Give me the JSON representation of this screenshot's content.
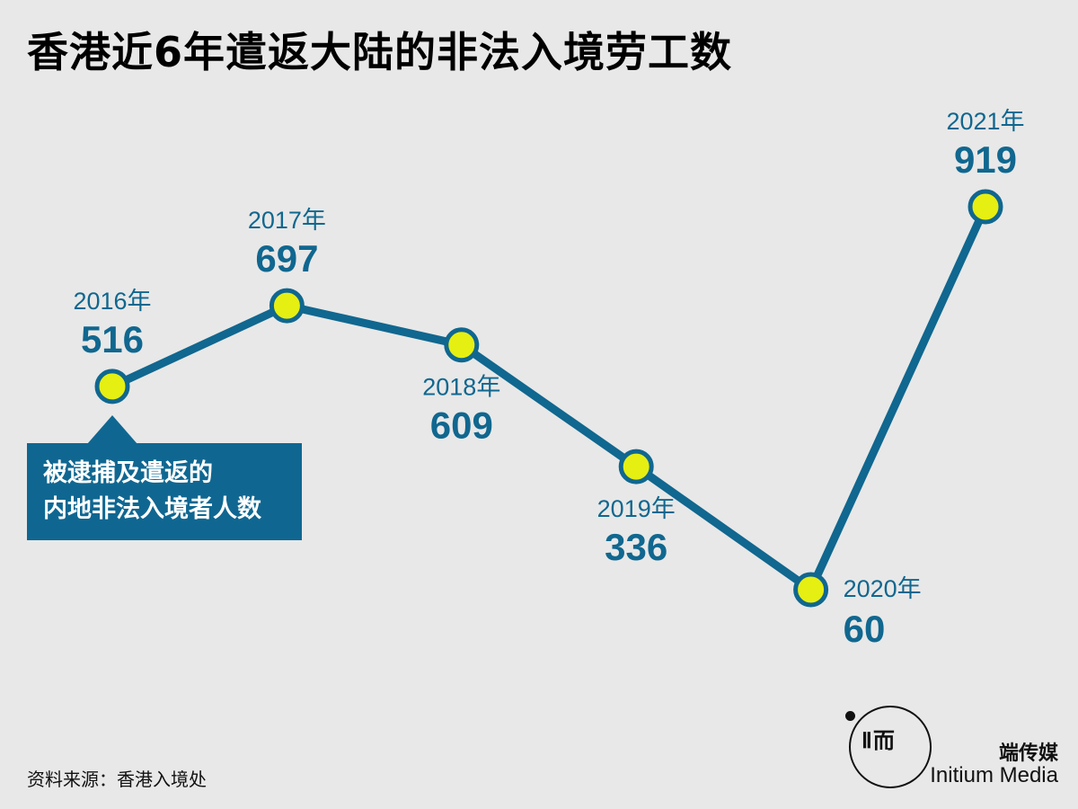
{
  "title": "香港近6年遣返大陆的非法入境劳工数",
  "chart_data": {
    "type": "line",
    "x": [
      "2016年",
      "2017年",
      "2018年",
      "2019年",
      "2020年",
      "2021年"
    ],
    "values": [
      516,
      697,
      609,
      336,
      60,
      919
    ],
    "ylim": [
      0,
      1000
    ],
    "grid": false,
    "line_color": "#10678f",
    "marker_color": "#e6ef12"
  },
  "callout": {
    "line1": "被逮捕及遣返的",
    "line2": "内地非法入境者人数"
  },
  "source": "资料来源：香港入境处",
  "brand": {
    "logo_mark": "Ⅱ而",
    "cn": "端传媒",
    "en": "Initium Media"
  }
}
